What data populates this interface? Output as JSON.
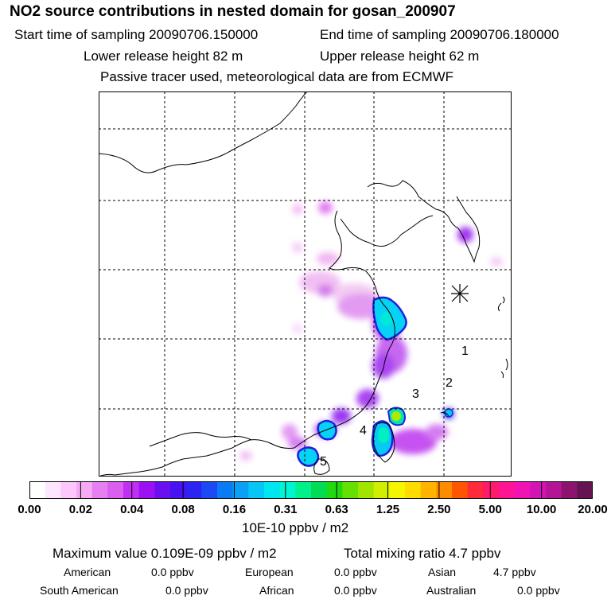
{
  "header": {
    "title": "NO2 source contributions in nested domain for gosan_200907",
    "start_time": "Start time of sampling 20090706.150000",
    "end_time": "End time of sampling 20090706.180000",
    "lower_height": "Lower release height   82 m",
    "upper_height": "Upper release height   62 m",
    "info": "Passive tracer used, meteorological data are from ECMWF"
  },
  "map": {
    "site_labels": [
      "1",
      "2",
      "3",
      "4",
      "5"
    ]
  },
  "colorbar": {
    "ticks": [
      "0.00",
      "0.02",
      "0.04",
      "0.08",
      "0.16",
      "0.31",
      "0.63",
      "1.25",
      "2.50",
      "5.00",
      "10.00",
      "20.00"
    ],
    "colors": [
      "#ffffff",
      "#ffe6ff",
      "#fcc8fc",
      "#f5aaf5",
      "#e67ff0",
      "#d95fef",
      "#c030f2",
      "#9b11f3",
      "#6a0ff0",
      "#4812f2",
      "#2c24f2",
      "#1b4af5",
      "#0a7af5",
      "#0aa0f5",
      "#05c6f5",
      "#00e6f0",
      "#00f5d2",
      "#00f08c",
      "#00dd55",
      "#22d810",
      "#66e000",
      "#a0e400",
      "#d0ee00",
      "#f5f500",
      "#ffdc00",
      "#ffb400",
      "#ff8c00",
      "#ff5500",
      "#ff2a3a",
      "#ff1a6e",
      "#ff1496",
      "#f014b4",
      "#d214b4",
      "#b41496",
      "#8c146e",
      "#641450"
    ],
    "units": "10E-10 ppbv / m2"
  },
  "stats": {
    "max_value": "Maximum value  0.109E-09 ppbv / m2",
    "total_mixing": "Total mixing ratio       4.7 ppbv"
  },
  "regions": [
    {
      "name": "American",
      "value": "0.0 ppbv"
    },
    {
      "name": "European",
      "value": "0.0 ppbv"
    },
    {
      "name": "Asian",
      "value": "4.7 ppbv"
    },
    {
      "name": "South American",
      "value": "0.0 ppbv"
    },
    {
      "name": "African",
      "value": "0.0 ppbv"
    },
    {
      "name": "Australian",
      "value": "0.0 ppbv"
    }
  ]
}
